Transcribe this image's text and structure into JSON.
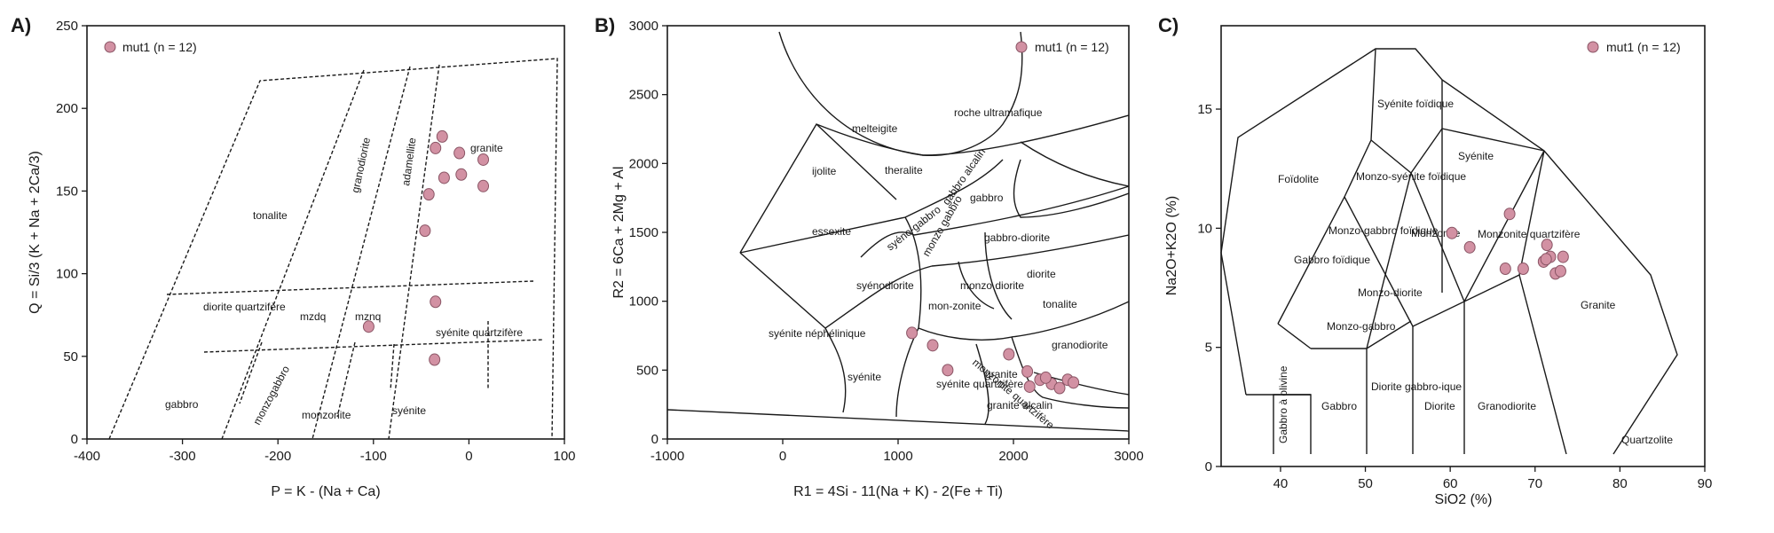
{
  "chart_data": [
    {
      "type": "scatter",
      "panel_label": "A)",
      "xlabel": "P = K - (Na + Ca)",
      "ylabel": "Q = Si/3 (K + Na + 2Ca/3)",
      "xlim": [
        -400,
        100
      ],
      "ylim": [
        0,
        250
      ],
      "x_ticks": [
        "-400",
        "-300",
        "-200",
        "-100",
        "0",
        "100"
      ],
      "y_ticks": [
        "0",
        "50",
        "100",
        "150",
        "200",
        "250"
      ],
      "legend": "mut1 (n = 12)",
      "legend_position": "top-left",
      "point_color": "#d291a3",
      "field_labels": [
        "tonalite",
        "granodiorite",
        "adamellite",
        "granite",
        "diorite quartzifère",
        "mzdq",
        "mznq",
        "syénite quartzifère",
        "gabbro",
        "monzogabbro",
        "monzonite",
        "syénite"
      ],
      "points": [
        {
          "x": -28,
          "y": 183
        },
        {
          "x": -35,
          "y": 176
        },
        {
          "x": -10,
          "y": 173
        },
        {
          "x": 15,
          "y": 169
        },
        {
          "x": -26,
          "y": 158
        },
        {
          "x": -8,
          "y": 160
        },
        {
          "x": 15,
          "y": 153
        },
        {
          "x": -42,
          "y": 148
        },
        {
          "x": -46,
          "y": 126
        },
        {
          "x": -35,
          "y": 83
        },
        {
          "x": -105,
          "y": 68
        },
        {
          "x": -36,
          "y": 48
        }
      ]
    },
    {
      "type": "scatter",
      "panel_label": "B)",
      "xlabel": "R1 = 4Si - 11(Na + K) - 2(Fe + Ti)",
      "ylabel": "R2 = 6Ca + 2Mg + Al",
      "xlim": [
        -1000,
        3000
      ],
      "ylim": [
        0,
        3000
      ],
      "x_ticks": [
        "-1000",
        "0",
        "1000",
        "2000",
        "3000"
      ],
      "y_ticks": [
        "0",
        "500",
        "1000",
        "1500",
        "2000",
        "2500",
        "3000"
      ],
      "legend": "mut1 (n = 12)",
      "legend_position": "top-right",
      "point_color": "#d291a3",
      "field_labels": [
        "roche ultramafique",
        "melteigite",
        "ijolite",
        "theralite",
        "gabbro alcalin",
        "gabbro",
        "essexite",
        "syéno-gabbro",
        "monzo gabbro",
        "gabbro-diorite",
        "syénodiorite",
        "monzo diorite",
        "diorite",
        "mon-zonite",
        "tonalite",
        "syénite néphélinique",
        "syénite",
        "syénite quartzifère",
        "monzonite quartzifère",
        "granite",
        "granodiorite",
        "granite alcalin"
      ],
      "points": [
        {
          "x": 1120,
          "y": 770
        },
        {
          "x": 1300,
          "y": 680
        },
        {
          "x": 1430,
          "y": 500
        },
        {
          "x": 1960,
          "y": 615
        },
        {
          "x": 2120,
          "y": 490
        },
        {
          "x": 2230,
          "y": 430
        },
        {
          "x": 2330,
          "y": 400
        },
        {
          "x": 2400,
          "y": 370
        },
        {
          "x": 2470,
          "y": 430
        },
        {
          "x": 2520,
          "y": 410
        },
        {
          "x": 2140,
          "y": 380
        },
        {
          "x": 2280,
          "y": 445
        }
      ]
    },
    {
      "type": "scatter",
      "panel_label": "C)",
      "xlabel": "SiO2 (%)",
      "ylabel": "Na2O+K2O (%)",
      "xlim": [
        33,
        90
      ],
      "ylim": [
        0,
        18.5
      ],
      "x_ticks": [
        "40",
        "50",
        "60",
        "70",
        "80",
        "90"
      ],
      "y_ticks": [
        "0",
        "5",
        "10",
        "15"
      ],
      "legend": "mut1 (n = 12)",
      "legend_position": "top-right",
      "point_color": "#d291a3",
      "field_labels": [
        "Foïdolite",
        "Syénite foïdique",
        "Syénite",
        "Monzo-syénite foïdique",
        "Monzo-gabbro foïdique",
        "Gabbro foïdique",
        "Monzonite",
        "Monzo-diorite",
        "Monzonite quartzifère",
        "Monzo-gabbro",
        "Granite",
        "Gabbro à olivine",
        "Gabbro",
        "Diorite gabbro-ique",
        "Diorite",
        "Granodiorite",
        "Quartzolite"
      ],
      "points": [
        {
          "x": 60.2,
          "y": 9.8
        },
        {
          "x": 62.3,
          "y": 9.2
        },
        {
          "x": 66.5,
          "y": 8.3
        },
        {
          "x": 67.0,
          "y": 10.6
        },
        {
          "x": 68.6,
          "y": 8.3
        },
        {
          "x": 71.0,
          "y": 8.6
        },
        {
          "x": 71.4,
          "y": 9.3
        },
        {
          "x": 71.8,
          "y": 8.8
        },
        {
          "x": 72.4,
          "y": 8.1
        },
        {
          "x": 73.0,
          "y": 8.2
        },
        {
          "x": 73.3,
          "y": 8.8
        },
        {
          "x": 71.3,
          "y": 8.7
        }
      ]
    }
  ]
}
